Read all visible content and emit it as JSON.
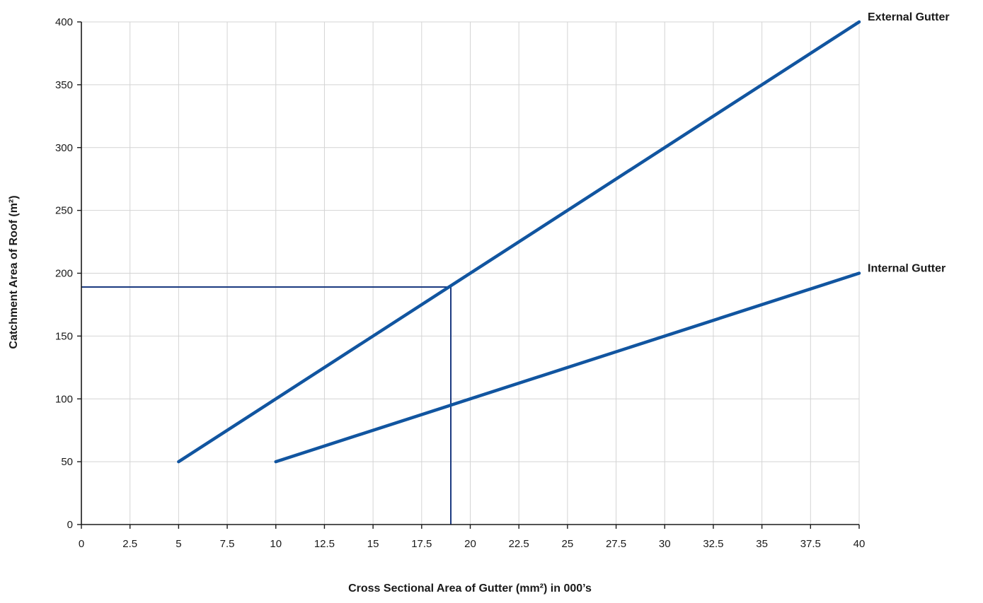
{
  "chart_data": {
    "type": "line",
    "xlabel": "Cross Sectional Area of Gutter (mm²) in 000’s",
    "ylabel": "Catchment Area of Roof (m²)",
    "xlim": [
      0,
      40
    ],
    "ylim": [
      0,
      400
    ],
    "x_ticks": [
      0,
      2.5,
      5,
      7.5,
      10,
      12.5,
      15,
      17.5,
      20,
      22.5,
      25,
      27.5,
      30,
      32.5,
      35,
      37.5,
      40
    ],
    "x_tick_labels": [
      "0",
      "2.5",
      "5",
      "7.5",
      "10",
      "12.5",
      "15",
      "17.5",
      "20",
      "22.5",
      "25",
      "27.5",
      "30",
      "32.5",
      "35",
      "37.5",
      "40"
    ],
    "y_ticks": [
      0,
      50,
      100,
      150,
      200,
      250,
      300,
      350,
      400
    ],
    "y_tick_labels": [
      "0",
      "50",
      "100",
      "150",
      "200",
      "250",
      "300",
      "350",
      "400"
    ],
    "grid": true,
    "series": [
      {
        "name": "External Gutter",
        "x": [
          5,
          40
        ],
        "y": [
          50,
          400
        ],
        "color": "#1155a0"
      },
      {
        "name": "Internal Gutter",
        "x": [
          10,
          40
        ],
        "y": [
          50,
          200
        ],
        "color": "#1155a0"
      }
    ],
    "reference_lines": {
      "x": 19,
      "y": 189,
      "color": "#1a3a80"
    }
  }
}
